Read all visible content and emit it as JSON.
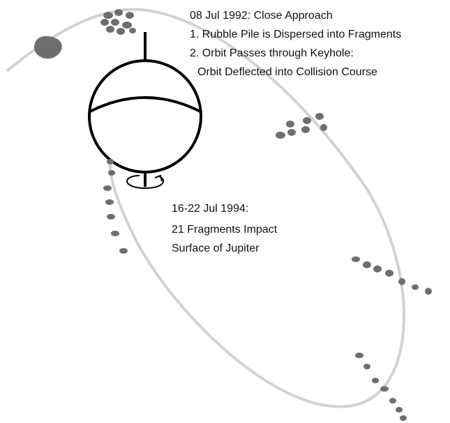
{
  "approach": {
    "date_line": "08 Jul 1992: Close Approach",
    "step1": "1. Rubble Pile is Dispersed into Fragments",
    "step2": "2. Orbit Passes through Keyhole:",
    "step2_detail": "Orbit Deflected into Collision Course"
  },
  "impact": {
    "date_line": "16-22 Jul 1994:",
    "line1": "21 Fragments Impact",
    "line2": "Surface of Jupiter"
  }
}
